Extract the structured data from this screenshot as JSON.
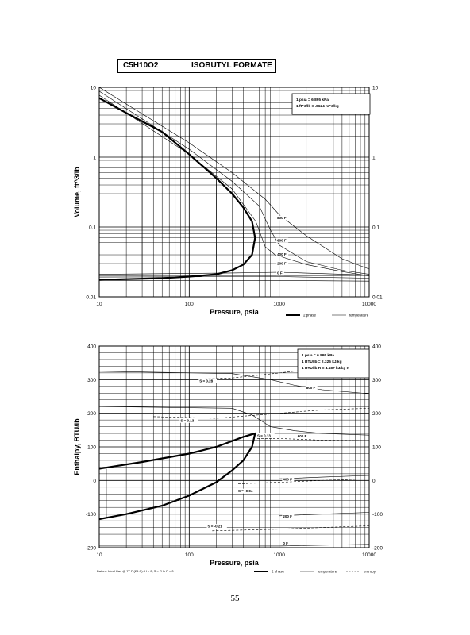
{
  "page": {
    "formula": "C5H10O2",
    "compound": "ISOBUTYL FORMATE",
    "page_number": "55",
    "datum_note": "Datum: Ideal Gas @ 77 F (25 C).  H = 0,  S = R ln P = 0"
  },
  "chart_data": [
    {
      "type": "line",
      "xlabel": "Pressure, psia",
      "ylabel": "Volume, ft^3/lb",
      "x_scale": "log",
      "y_scale": "log",
      "xlim": [
        10,
        10000
      ],
      "ylim": [
        0.01,
        10
      ],
      "x_ticks": [
        "10",
        "100",
        "1000",
        "10000"
      ],
      "y_ticks_left": [
        "10",
        "1",
        "0.1",
        "0.01"
      ],
      "y_ticks_right": [
        "10",
        "1",
        "0.1",
        "0.01"
      ],
      "grid": true,
      "legend": [
        {
          "label": "2 phase",
          "style": "thick"
        },
        {
          "label": "temperature",
          "style": "thin"
        }
      ],
      "note_box": [
        "1 psia = 6.895 kPa",
        "1 ft^3/lb = .0624 m^3/kg"
      ],
      "series": [
        {
          "kind": "2phase",
          "points": [
            [
              10,
              0.0175
            ],
            [
              50,
              0.0185
            ],
            [
              100,
              0.0195
            ],
            [
              200,
              0.021
            ],
            [
              300,
              0.024
            ],
            [
              400,
              0.029
            ],
            [
              500,
              0.04
            ],
            [
              540,
              0.07
            ],
            [
              500,
              0.12
            ],
            [
              400,
              0.19
            ],
            [
              300,
              0.3
            ],
            [
              200,
              0.5
            ],
            [
              100,
              1.1
            ],
            [
              50,
              2.3
            ],
            [
              20,
              4.3
            ],
            [
              10,
              7
            ]
          ]
        },
        {
          "kind": "temperature",
          "label": "800 F",
          "points": [
            [
              10,
              10
            ],
            [
              100,
              1.6
            ],
            [
              300,
              0.6
            ],
            [
              700,
              0.25
            ],
            [
              1000,
              0.15
            ],
            [
              2000,
              0.075
            ],
            [
              5000,
              0.035
            ],
            [
              10000,
              0.025
            ]
          ]
        },
        {
          "kind": "temperature",
          "label": "",
          "points": [
            [
              10,
              8.8
            ],
            [
              100,
              1.3
            ],
            [
              300,
              0.45
            ],
            [
              600,
              0.2
            ],
            [
              800,
              0.09
            ],
            [
              1000,
              0.055
            ],
            [
              2000,
              0.032
            ],
            [
              5000,
              0.024
            ],
            [
              10000,
              0.021
            ]
          ]
        },
        {
          "kind": "temperature",
          "label": "600 F",
          "points": [
            [
              10,
              7.7
            ],
            [
              100,
              1.1
            ],
            [
              300,
              0.35
            ],
            [
              550,
              0.12
            ],
            [
              700,
              0.052
            ],
            [
              900,
              0.04
            ],
            [
              2000,
              0.029
            ],
            [
              5000,
              0.023
            ],
            [
              10000,
              0.02
            ]
          ]
        },
        {
          "kind": "temperature",
          "label": "400 F",
          "points": [
            [
              10,
              0.021
            ],
            [
              300,
              0.022
            ],
            [
              1000,
              0.0225
            ],
            [
              3000,
              0.0215
            ],
            [
              10000,
              0.0205
            ]
          ]
        },
        {
          "kind": "temperature",
          "label": "200 F",
          "points": [
            [
              10,
              0.0192
            ],
            [
              1000,
              0.0195
            ],
            [
              10000,
              0.0185
            ]
          ]
        },
        {
          "kind": "temperature",
          "label": "0 F",
          "points": [
            [
              10,
              0.0172
            ],
            [
              1000,
              0.0172
            ],
            [
              10000,
              0.0168
            ]
          ]
        }
      ],
      "annotations": [
        "800 F",
        "600 F",
        "400 F",
        "200 F",
        "0 F"
      ]
    },
    {
      "type": "line",
      "xlabel": "Pressure, psia",
      "ylabel": "Enthalpy, BTU/lb",
      "x_scale": "log",
      "y_scale": "linear",
      "xlim": [
        10,
        10000
      ],
      "ylim": [
        -200,
        400
      ],
      "x_ticks": [
        "10",
        "100",
        "1000",
        "10000"
      ],
      "y_ticks_left": [
        "400",
        "300",
        "200",
        "100",
        "0",
        "-100",
        "-200"
      ],
      "y_ticks_right": [
        "400",
        "300",
        "200",
        "100",
        "0",
        "-100",
        "-200"
      ],
      "grid": true,
      "legend": [
        {
          "label": "2 phase",
          "style": "thick"
        },
        {
          "label": "temperature",
          "style": "thin"
        },
        {
          "label": "entropy",
          "style": "dashed"
        }
      ],
      "note_box": [
        "1 psia = 6.895 kPa",
        "1 BTU/lb = 2.326 kJ/kg",
        "1 BTU/lb R = 4.187 kJ/kg K"
      ],
      "series": [
        {
          "kind": "2phase",
          "points": [
            [
              10,
              35
            ],
            [
              30,
              55
            ],
            [
              100,
              80
            ],
            [
              200,
              100
            ],
            [
              400,
              130
            ],
            [
              540,
              140
            ],
            [
              500,
              100
            ],
            [
              400,
              60
            ],
            [
              300,
              30
            ],
            [
              200,
              -5
            ],
            [
              100,
              -45
            ],
            [
              50,
              -75
            ],
            [
              20,
              -100
            ],
            [
              10,
              -115
            ]
          ]
        },
        {
          "kind": "temperature",
          "label": "800 F",
          "points": [
            [
              10,
              325
            ],
            [
              300,
              318
            ],
            [
              800,
              300
            ],
            [
              1500,
              283
            ],
            [
              3000,
              270
            ],
            [
              10000,
              258
            ]
          ]
        },
        {
          "kind": "temperature",
          "label": "600 F",
          "points": [
            [
              10,
              220
            ],
            [
              300,
              215
            ],
            [
              500,
              195
            ],
            [
              800,
              160
            ],
            [
              1500,
              148
            ],
            [
              3000,
              140
            ],
            [
              10000,
              135
            ]
          ]
        },
        {
          "kind": "temperature",
          "label": "400 F",
          "points": [
            [
              1000,
              5
            ],
            [
              3000,
              10
            ],
            [
              10000,
              15
            ]
          ]
        },
        {
          "kind": "temperature",
          "label": "200 F",
          "points": [
            [
              1000,
              -105
            ],
            [
              3000,
              -100
            ],
            [
              10000,
              -95
            ]
          ]
        },
        {
          "kind": "temperature",
          "label": "0 F",
          "points": [
            [
              10,
              -195
            ],
            [
              1000,
              -195
            ],
            [
              10000,
              -190
            ]
          ]
        },
        {
          "kind": "entropy",
          "label": "S = 0.28",
          "points": [
            [
              80,
              300
            ],
            [
              300,
              305
            ],
            [
              1000,
              320
            ],
            [
              3000,
              335
            ],
            [
              10000,
              345
            ]
          ]
        },
        {
          "kind": "entropy",
          "label": "S = 0.13",
          "points": [
            [
              40,
              190
            ],
            [
              200,
              185
            ],
            [
              1000,
              200
            ],
            [
              3000,
              210
            ],
            [
              10000,
              215
            ]
          ]
        },
        {
          "kind": "entropy",
          "label": "S = 0.13",
          "points": [
            [
              570,
              125
            ],
            [
              1000,
              125
            ],
            [
              3000,
              120
            ],
            [
              10000,
              118
            ]
          ]
        },
        {
          "kind": "entropy",
          "label": "S = -0.04",
          "points": [
            [
              350,
              -10
            ],
            [
              1000,
              -5
            ],
            [
              3000,
              0
            ],
            [
              10000,
              5
            ]
          ]
        },
        {
          "kind": "entropy",
          "label": "S = -0.21",
          "points": [
            [
              180,
              -150
            ],
            [
              1000,
              -145
            ],
            [
              3000,
              -140
            ],
            [
              10000,
              -135
            ]
          ]
        }
      ],
      "annotations": [
        "S = 0.28",
        "800 F",
        "S = 0.13",
        "600 F",
        "S = 0.13",
        "400 F",
        "S = -0.04",
        "200 F",
        "S = -0.21",
        "0 F"
      ]
    }
  ]
}
